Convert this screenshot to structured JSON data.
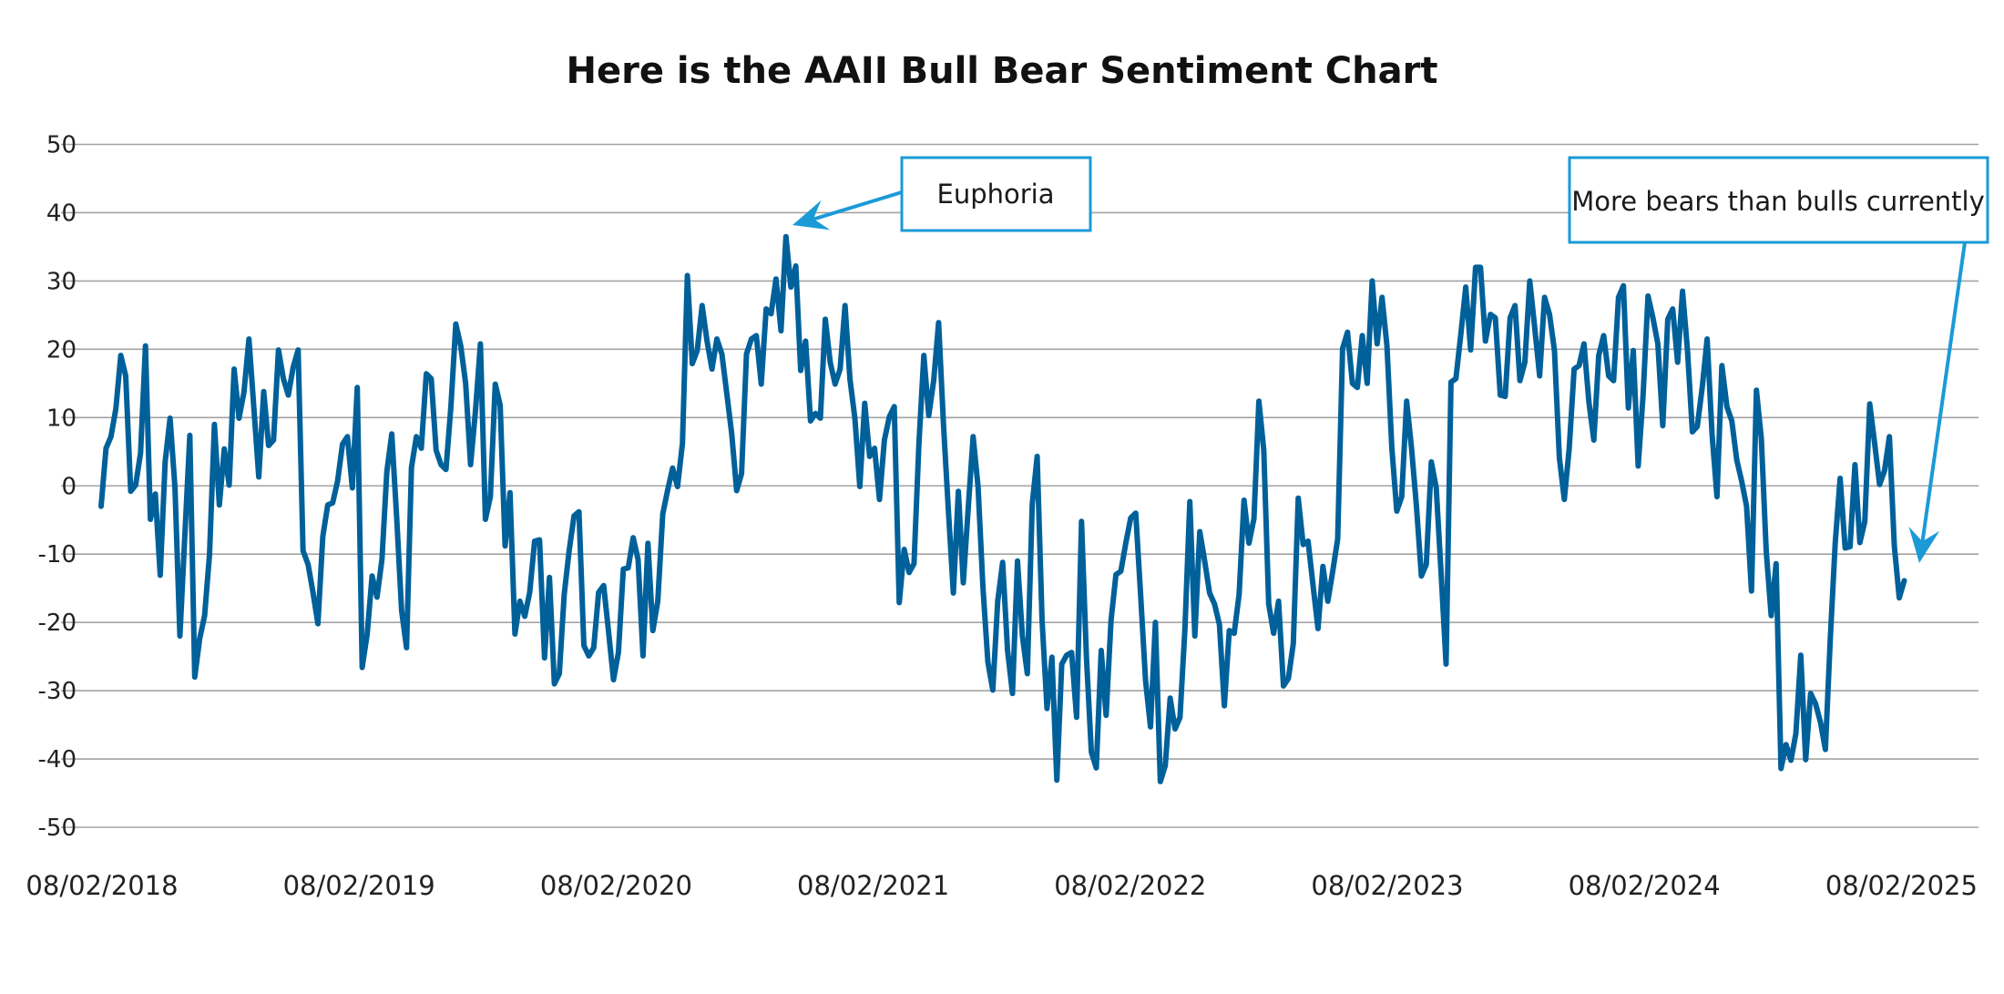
{
  "chart_data": {
    "type": "line",
    "title": "Here is the AAII Bull Bear Sentiment Chart",
    "xlabel": "",
    "ylabel": "",
    "ylim": [
      -50,
      50
    ],
    "yticks": [
      "50",
      "40",
      "30",
      "20",
      "10",
      "0",
      "-10",
      "-20",
      "-30",
      "-40",
      "-50"
    ],
    "xticks": [
      "08/02/2018",
      "08/02/2019",
      "08/02/2020",
      "08/02/2021",
      "08/02/2022",
      "08/02/2023",
      "08/02/2024",
      "08/02/2025"
    ],
    "grid": "horizontal",
    "legend": "none",
    "x_start": "08/02/2018",
    "x_interval": "weekly",
    "colors": {
      "series": "#00609a",
      "annotation": "#1b9ad6",
      "grid": "#a3a3a3"
    },
    "series": [
      {
        "values": [
          -3.0,
          5.5,
          7.2,
          11.3,
          19.1,
          16.1,
          -0.8,
          0.1,
          4.8,
          20.5,
          -4.9,
          -1.2,
          -13.1,
          3.5,
          9.9,
          -0.3,
          -22.0,
          -7.3,
          7.4,
          -28.0,
          -22.4,
          -19.0,
          -10.1,
          9.0,
          -2.8,
          5.4,
          0.1,
          17.1,
          9.9,
          13.7,
          21.5,
          11.4,
          1.3,
          13.8,
          5.9,
          6.7,
          19.9,
          15.7,
          13.3,
          17.4,
          19.9,
          -9.5,
          -11.5,
          -15.6,
          -20.2,
          -7.4,
          -2.8,
          -2.5,
          0.7,
          6.1,
          7.2,
          -0.3,
          14.4,
          -26.6,
          -21.7,
          -13.2,
          -16.3,
          -10.8,
          2.1,
          7.6,
          -4.7,
          -18.3,
          -23.7,
          2.7,
          7.2,
          5.5,
          16.4,
          15.7,
          5.2,
          3.1,
          2.4,
          11.6,
          23.7,
          20.5,
          15.0,
          3.1,
          11.0,
          20.8,
          -4.9,
          -1.6,
          14.9,
          11.8,
          -8.8,
          -1.0,
          -21.7,
          -16.9,
          -19.1,
          -15.6,
          -8.1,
          -7.9,
          -25.2,
          -13.4,
          -29.0,
          -27.5,
          -15.9,
          -9.5,
          -4.4,
          -3.8,
          -23.4,
          -24.9,
          -23.7,
          -15.6,
          -14.6,
          -21.4,
          -28.4,
          -24.4,
          -12.2,
          -12.0,
          -7.6,
          -10.8,
          -24.9,
          -8.4,
          -21.2,
          -16.9,
          -4.1,
          -0.6,
          2.6,
          -0.1,
          6.2,
          30.8,
          17.9,
          19.8,
          26.4,
          21.2,
          17.1,
          21.5,
          19.3,
          13.5,
          7.6,
          -0.7,
          1.8,
          19.3,
          21.5,
          22.0,
          14.9,
          25.9,
          25.2,
          30.3,
          22.7,
          36.5,
          29.1,
          32.2,
          16.9,
          21.2,
          9.5,
          10.6,
          9.9,
          24.4,
          18.1,
          14.9,
          17.1,
          26.4,
          15.6,
          9.9,
          -0.1,
          12.1,
          4.3,
          5.5,
          -2.0,
          6.7,
          10.1,
          11.6,
          -17.1,
          -9.3,
          -12.7,
          -11.4,
          6.2,
          19.1,
          10.3,
          15.4,
          23.9,
          8.9,
          -3.7,
          -15.7,
          -0.8,
          -14.2,
          -3.3,
          7.2,
          -0.1,
          -14.9,
          -25.8,
          -29.9,
          -16.9,
          -11.2,
          -24.1,
          -30.4,
          -11.0,
          -22.0,
          -27.5,
          -2.7,
          4.3,
          -19.7,
          -32.6,
          -25.1,
          -43.1,
          -26.1,
          -24.8,
          -24.4,
          -33.9,
          -5.2,
          -25.1,
          -39.0,
          -41.3,
          -24.1,
          -33.6,
          -19.7,
          -13.0,
          -12.5,
          -8.4,
          -4.7,
          -4.0,
          -16.0,
          -28.5,
          -35.3,
          -20.0,
          -43.3,
          -41.0,
          -31.1,
          -35.6,
          -33.9,
          -21.0,
          -2.3,
          -22.0,
          -6.7,
          -11.0,
          -15.7,
          -17.3,
          -20.3,
          -32.2,
          -21.2,
          -21.6,
          -15.9,
          -2.1,
          -8.4,
          -4.8,
          12.4,
          5.2,
          -17.3,
          -21.6,
          -16.9,
          -29.3,
          -28.2,
          -23.1,
          -1.8,
          -8.6,
          -8.1,
          -14.6,
          -20.9,
          -11.8,
          -16.9,
          -12.5,
          -7.8,
          20.1,
          22.5,
          15.0,
          14.4,
          22.0,
          15.0,
          30.0,
          20.8,
          27.6,
          20.5,
          5.5,
          -3.7,
          -1.6,
          12.4,
          5.5,
          -3.0,
          -13.2,
          -11.5,
          3.5,
          -0.3,
          -12.9,
          -26.1,
          15.2,
          15.7,
          22.2,
          29.1,
          19.9,
          32.0,
          32.0,
          21.2,
          25.1,
          24.6,
          13.3,
          13.1,
          24.6,
          26.4,
          15.4,
          18.1,
          30.0,
          23.2,
          16.1,
          27.6,
          25.1,
          19.8,
          4.1,
          -2.0,
          5.5,
          17.1,
          17.6,
          20.8,
          12.3,
          6.7,
          19.1,
          22.0,
          16.1,
          15.4,
          27.6,
          29.3,
          11.4,
          19.8,
          2.9,
          13.3,
          27.8,
          24.6,
          20.8,
          8.8,
          24.4,
          25.9,
          18.1,
          28.5,
          19.9,
          7.9,
          8.7,
          14.4,
          21.5,
          7.6,
          -1.6,
          17.6,
          11.6,
          9.5,
          3.8,
          0.7,
          -3.0,
          -15.4,
          14.0,
          6.9,
          -9.6,
          -19.0,
          -11.4,
          -41.4,
          -37.9,
          -40.2,
          -36.3,
          -24.8,
          -40.1,
          -30.4,
          -31.9,
          -34.6,
          -38.6,
          -22.4,
          -8.4,
          1.1,
          -9.1,
          -8.9,
          3.1,
          -8.3,
          -5.2,
          12.0,
          6.2,
          0.2,
          2.2,
          7.2,
          -8.8,
          -16.4,
          -13.9
        ]
      }
    ],
    "annotations": [
      {
        "text": "Euphoria"
      },
      {
        "text": "More bears than bulls currently"
      }
    ]
  }
}
